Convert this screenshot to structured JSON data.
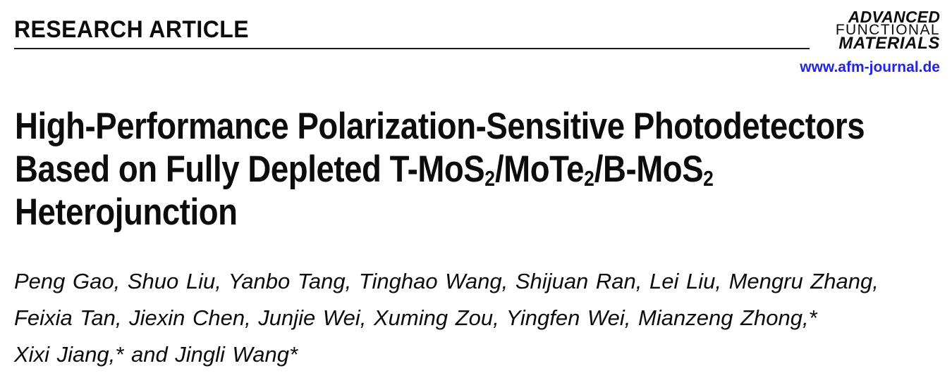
{
  "header": {
    "article_type": "RESEARCH ARTICLE",
    "logo_lines": [
      "ADVANCED",
      "FUNCTIONAL",
      "MATERIALS"
    ],
    "journal_url": "www.afm-journal.de"
  },
  "title": {
    "lines": [
      {
        "segments": [
          {
            "t": "High-Performance Polarization-Sensitive Photodetectors"
          }
        ]
      },
      {
        "segments": [
          {
            "t": "Based on Fully Depleted T-MoS"
          },
          {
            "t": "2",
            "sub": true
          },
          {
            "t": "/MoTe"
          },
          {
            "t": "2",
            "sub": true
          },
          {
            "t": "/B-MoS"
          },
          {
            "t": "2",
            "sub": true
          }
        ]
      },
      {
        "segments": [
          {
            "t": "Heterojunction"
          }
        ]
      }
    ]
  },
  "authors": {
    "line1": "Peng Gao, Shuo Liu, Yanbo Tang, Tinghao Wang, Shijuan Ran, Lei Liu, Mengru Zhang,",
    "line2": "Feixia Tan, Jiexin Chen, Junjie Wei, Xuming Zou, Yingfen Wei, Mianzeng Zhong,*",
    "line3": "Xixi Jiang,* and Jingli Wang*"
  },
  "colors": {
    "link_blue": "#2323e8",
    "text": "#0c0c0c",
    "rule": "#1a1a1a"
  }
}
